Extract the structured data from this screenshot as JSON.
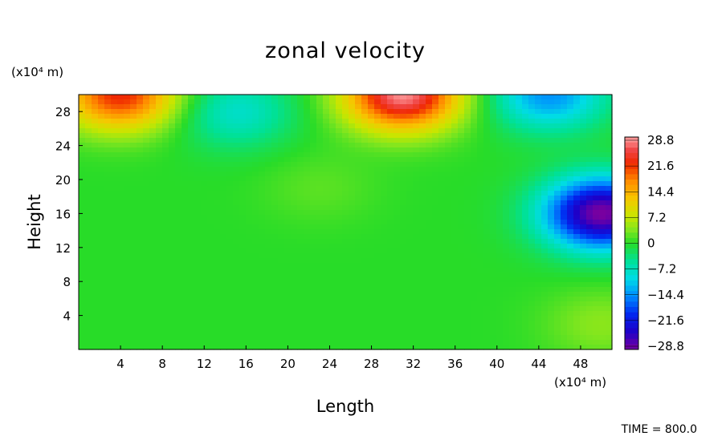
{
  "chart_data": {
    "type": "heatmap",
    "title": "zonal velocity",
    "xlabel": "Length",
    "ylabel": "Height",
    "x_unit": "(x10⁴ m)",
    "y_unit": "(x10⁴ m)",
    "xlim": [
      0,
      51
    ],
    "ylim": [
      0,
      30
    ],
    "x_ticks": [
      "4",
      "8",
      "12",
      "16",
      "20",
      "24",
      "28",
      "32",
      "36",
      "40",
      "44",
      "48"
    ],
    "y_ticks": [
      "4",
      "8",
      "12",
      "16",
      "20",
      "24",
      "28"
    ],
    "colorbar": {
      "range": [
        -28.8,
        28.8
      ],
      "labels": [
        "28.8",
        "21.6",
        "14.4",
        "7.2",
        "0",
        "−7.2",
        "−14.4",
        "−21.6",
        "−28.8"
      ]
    },
    "features": [
      {
        "x": 4,
        "y": 30,
        "value": 22
      },
      {
        "x": 31,
        "y": 30,
        "value": 28
      },
      {
        "x": 45,
        "y": 30,
        "value": -14
      },
      {
        "x": 15,
        "y": 28,
        "value": -8
      },
      {
        "x": 50,
        "y": 16,
        "value": -29
      },
      {
        "x": 23,
        "y": 19,
        "value": 2
      },
      {
        "x": 50,
        "y": 3,
        "value": 4
      }
    ],
    "grid": false,
    "legend": "right"
  },
  "footer": {
    "time_label": "TIME = 800.0"
  }
}
